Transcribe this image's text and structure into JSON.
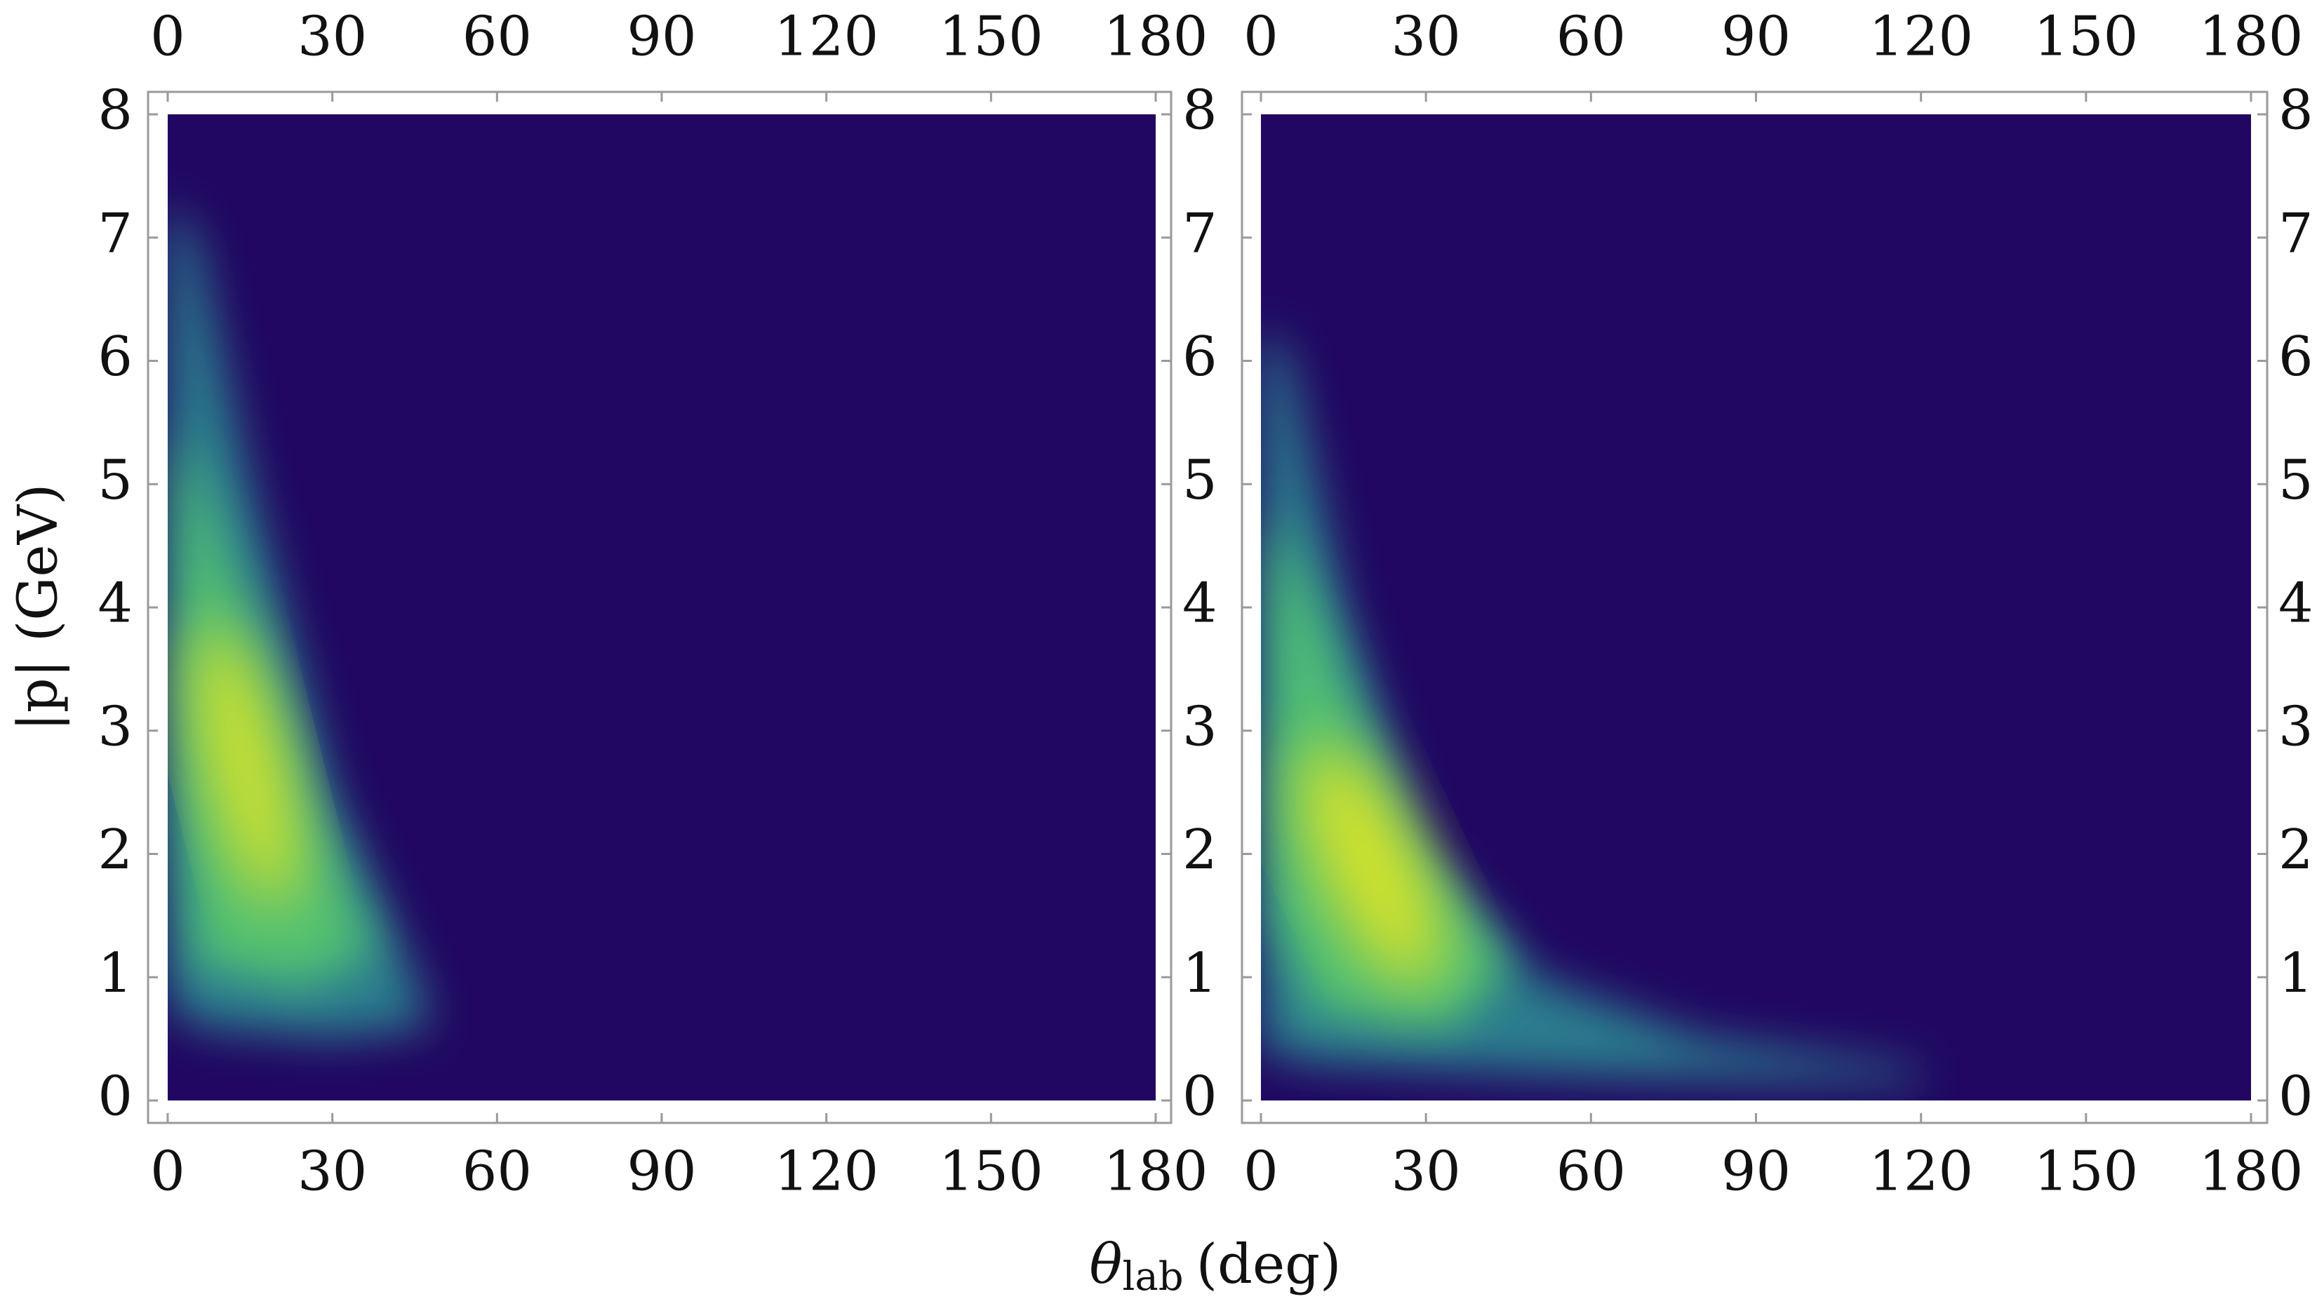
{
  "figure": {
    "xlabel": {
      "symbol": "θ",
      "subscript": "lab",
      "unit": "(deg)"
    },
    "ylabel": "|p| (GeV)"
  },
  "chart_data": [
    {
      "type": "heatmap",
      "xlim": [
        0,
        180
      ],
      "xticks": [
        0,
        30,
        60,
        90,
        120,
        150,
        180
      ],
      "ylim": [
        0,
        8
      ],
      "yticks": [
        0,
        1,
        2,
        3,
        4,
        5,
        6,
        7,
        8
      ]
    },
    {
      "type": "heatmap",
      "xlim": [
        0,
        180
      ],
      "xticks": [
        0,
        30,
        60,
        90,
        120,
        150,
        180
      ],
      "ylim": [
        0,
        8
      ],
      "yticks": [
        0,
        1,
        2,
        3,
        4,
        5,
        6,
        7,
        8
      ]
    }
  ]
}
